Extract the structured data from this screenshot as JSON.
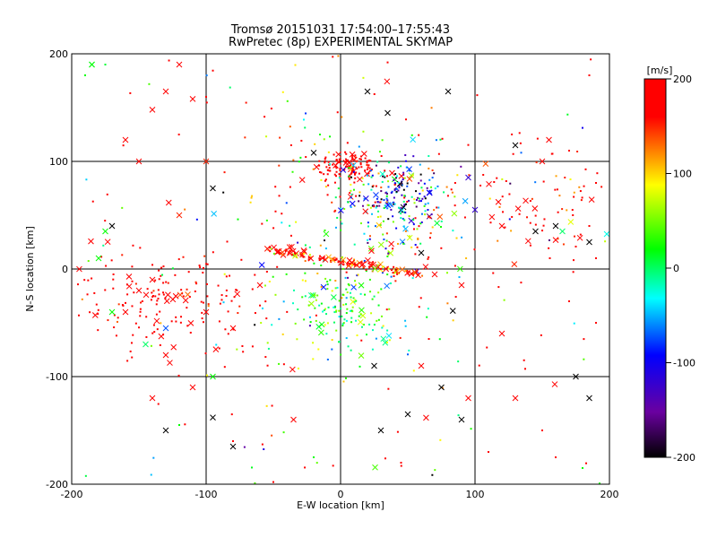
{
  "chart_data": {
    "type": "scatter",
    "title": "Tromsø 20151031 17:54:00–17:55:43",
    "subtitle": "RwPretec (8p) EXPERIMENTAL SKYMAP",
    "xlabel": "E-W location [km]",
    "ylabel": "N-S location [km]",
    "xlim": [
      -200,
      200
    ],
    "ylim": [
      -200,
      200
    ],
    "xticks": [
      "-200",
      "-100",
      "0",
      "100",
      "200"
    ],
    "yticks": [
      "-200",
      "-100",
      "0",
      "100",
      "200"
    ],
    "grid": true,
    "colorbar": {
      "label": "[m/s]",
      "range": [
        -200,
        200
      ],
      "ticks": [
        "200",
        "100",
        "0",
        "-100",
        "-200"
      ],
      "colormap": [
        "#000000",
        "#6a00a0",
        "#0000ff",
        "#00ffff",
        "#00ff00",
        "#ffff00",
        "#ff0000"
      ]
    },
    "clusters": [
      {
        "cx": 5,
        "cy": 95,
        "sx": 12,
        "sy": 8,
        "n": 120,
        "v": 190,
        "sv": 25
      },
      {
        "cx": 45,
        "cy": 70,
        "sx": 15,
        "sy": 15,
        "n": 140,
        "v": -120,
        "sv": 60
      },
      {
        "cx": 30,
        "cy": 50,
        "sx": 30,
        "sy": 25,
        "n": 150,
        "v": 40,
        "sv": 90
      },
      {
        "cx": 0,
        "cy": -40,
        "sx": 22,
        "sy": 25,
        "n": 160,
        "v": 20,
        "sv": 40
      },
      {
        "cx": -130,
        "cy": -30,
        "sx": 40,
        "sy": 25,
        "n": 180,
        "v": 190,
        "sv": 25
      },
      {
        "cx": 140,
        "cy": 60,
        "sx": 40,
        "sy": 40,
        "n": 100,
        "v": 185,
        "sv": 30
      },
      {
        "cx": -10,
        "cy": 120,
        "sx": 60,
        "sy": 50,
        "n": 60,
        "v": 120,
        "sv": 120
      },
      {
        "cx": 0,
        "cy": 0,
        "sx": 130,
        "sy": 120,
        "n": 250,
        "v": 100,
        "sv": 140
      }
    ],
    "streaks": [
      {
        "x0": -55,
        "y0": 18,
        "x1": 60,
        "y1": -5,
        "n": 140,
        "v": 180,
        "sv": 60
      }
    ],
    "crosses": [
      [
        -170,
        40,
        -200
      ],
      [
        -175,
        35,
        20
      ],
      [
        -130,
        165,
        190
      ],
      [
        -140,
        148,
        190
      ],
      [
        -120,
        190,
        190
      ],
      [
        -110,
        158,
        190
      ],
      [
        -150,
        100,
        190
      ],
      [
        -160,
        120,
        190
      ],
      [
        -185,
        190,
        10
      ],
      [
        -100,
        100,
        150
      ],
      [
        -95,
        75,
        -200
      ],
      [
        -20,
        108,
        -200
      ],
      [
        20,
        165,
        -200
      ],
      [
        35,
        145,
        -200
      ],
      [
        80,
        165,
        -200
      ],
      [
        95,
        85,
        -120
      ],
      [
        100,
        55,
        -120
      ],
      [
        120,
        40,
        190
      ],
      [
        150,
        100,
        190
      ],
      [
        155,
        120,
        190
      ],
      [
        145,
        35,
        -200
      ],
      [
        160,
        40,
        -200
      ],
      [
        165,
        35,
        0
      ],
      [
        160,
        27,
        190
      ],
      [
        185,
        25,
        -200
      ],
      [
        130,
        115,
        -200
      ],
      [
        60,
        15,
        -200
      ],
      [
        70,
        -5,
        190
      ],
      [
        90,
        -15,
        190
      ],
      [
        -180,
        10,
        20
      ],
      [
        -140,
        -10,
        190
      ],
      [
        -150,
        -20,
        190
      ],
      [
        -160,
        -40,
        190
      ],
      [
        -130,
        -55,
        -70
      ],
      [
        -145,
        -70,
        0
      ],
      [
        -130,
        -80,
        190
      ],
      [
        -100,
        -40,
        190
      ],
      [
        -80,
        -55,
        190
      ],
      [
        -60,
        -15,
        190
      ],
      [
        -95,
        -100,
        20
      ],
      [
        -140,
        -120,
        190
      ],
      [
        -110,
        -110,
        190
      ],
      [
        -130,
        -150,
        -200
      ],
      [
        -95,
        -138,
        -200
      ],
      [
        -80,
        -165,
        -200
      ],
      [
        -35,
        -140,
        190
      ],
      [
        30,
        -150,
        -200
      ],
      [
        50,
        -135,
        -200
      ],
      [
        60,
        -90,
        190
      ],
      [
        75,
        -110,
        -200
      ],
      [
        90,
        -140,
        -200
      ],
      [
        95,
        -120,
        190
      ],
      [
        130,
        -120,
        190
      ],
      [
        175,
        -100,
        -200
      ],
      [
        185,
        -120,
        -200
      ],
      [
        120,
        -60,
        190
      ],
      [
        25,
        -90,
        -200
      ],
      [
        -170,
        -40,
        20
      ],
      [
        -120,
        50,
        150
      ],
      [
        -185,
        190,
        20
      ]
    ],
    "points": [
      [
        35,
        192,
        190
      ],
      [
        -175,
        190,
        10
      ],
      [
        185,
        180,
        190
      ],
      [
        -100,
        160,
        190
      ],
      [
        170,
        110,
        190
      ],
      [
        190,
        80,
        190
      ],
      [
        185,
        40,
        190
      ],
      [
        190,
        10,
        190
      ],
      [
        -190,
        180,
        20
      ],
      [
        -50,
        -198,
        190
      ],
      [
        -80,
        -160,
        190
      ],
      [
        -120,
        -145,
        20
      ],
      [
        150,
        -150,
        190
      ],
      [
        160,
        -175,
        190
      ],
      [
        180,
        -185,
        20
      ],
      [
        110,
        -170,
        190
      ],
      [
        45,
        -180,
        190
      ],
      [
        -20,
        -175,
        20
      ],
      [
        190,
        -50,
        190
      ],
      [
        170,
        -30,
        190
      ]
    ]
  }
}
